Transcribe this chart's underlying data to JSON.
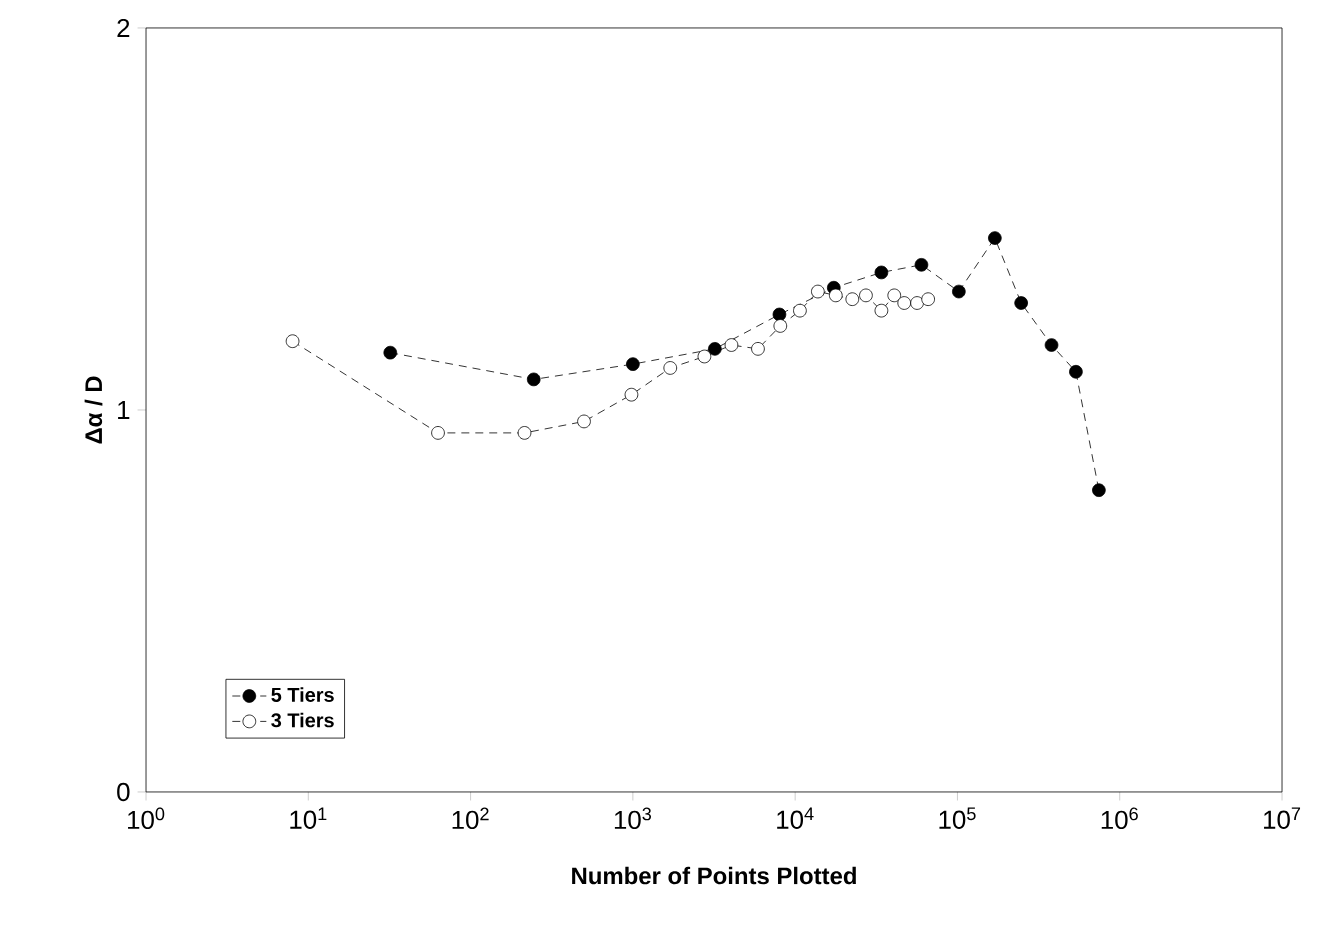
{
  "chart_data": {
    "type": "line",
    "xlabel": "Number of Points Plotted",
    "ylabel": "Δα / D",
    "log": "x",
    "xlim": [
      1,
      10000000
    ],
    "ylim": [
      0,
      2
    ],
    "xticks": [
      {
        "value": 1,
        "label": "10$^{0}$"
      },
      {
        "value": 10,
        "label": "10$^{1}$"
      },
      {
        "value": 100,
        "label": "10$^{2}$"
      },
      {
        "value": 1000,
        "label": "10$^{3}$"
      },
      {
        "value": 10000,
        "label": "10$^{4}$"
      },
      {
        "value": 100000,
        "label": "10$^{5}$"
      },
      {
        "value": 1000000,
        "label": "10$^{6}$"
      },
      {
        "value": 10000000,
        "label": "10$^{7}$"
      }
    ],
    "yticks": [
      0,
      1,
      2
    ],
    "legend": "bottom left",
    "marker": "circle",
    "line_style": "dashed",
    "grid": false,
    "series": [
      {
        "name": "5 Tiers",
        "color": "#000000",
        "x": [
          32,
          245,
          1000,
          3200,
          8000,
          17300,
          34000,
          60000,
          102000,
          170000,
          247000,
          380000,
          537000,
          744000
        ],
        "values": [
          1.15,
          1.08,
          1.12,
          1.16,
          1.25,
          1.32,
          1.36,
          1.38,
          1.31,
          1.45,
          1.28,
          1.17,
          1.1,
          0.79
        ]
      },
      {
        "name": "3 Tiers",
        "color": "#000000",
        "x": [
          8,
          63,
          215,
          500,
          980,
          1700,
          2760,
          4050,
          5900,
          8100,
          10700,
          13800,
          17800,
          22500,
          27300,
          34000,
          40800,
          47000,
          56400,
          66000
        ],
        "values": [
          1.18,
          0.94,
          0.94,
          0.97,
          1.04,
          1.11,
          1.14,
          1.17,
          1.16,
          1.22,
          1.26,
          1.31,
          1.3,
          1.29,
          1.3,
          1.26,
          1.3,
          1.28,
          1.28,
          1.29
        ]
      }
    ]
  }
}
